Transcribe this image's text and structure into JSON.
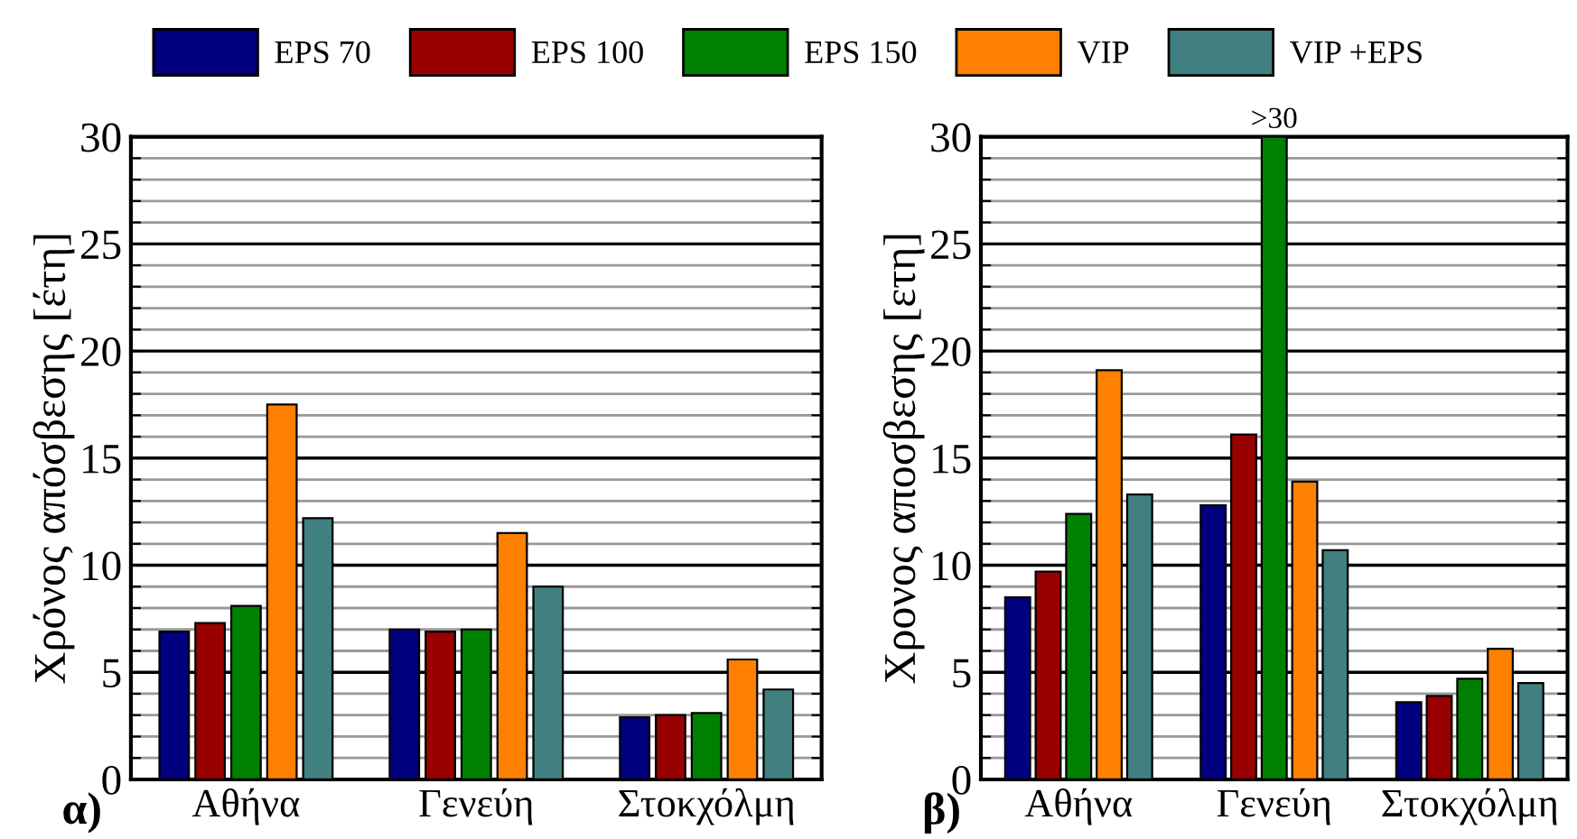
{
  "chart_data": [
    {
      "type": "bar",
      "categories": [
        "Αθήνα",
        "Γενεύη",
        "Στοκχόλμη"
      ],
      "ylabel": "Χρόνος απόσβεσης [έτη]",
      "annotations": [
        "α)"
      ],
      "legend": "top",
      "grid": "y",
      "ylim": [
        0,
        30
      ],
      "yticks": [
        0,
        {
          "value": 1,
          "label": null
        },
        {
          "value": 2,
          "label": null
        },
        {
          "value": 3,
          "label": null
        },
        {
          "value": 4,
          "label": null
        },
        5,
        {
          "value": 6,
          "label": null
        },
        {
          "value": 7,
          "label": null
        },
        {
          "value": 8,
          "label": null
        },
        {
          "value": 9,
          "label": null
        },
        10,
        {
          "value": 11,
          "label": null
        },
        {
          "value": 12,
          "label": null
        },
        {
          "value": 13,
          "label": null
        },
        {
          "value": 14,
          "label": null
        },
        15,
        {
          "value": 16,
          "label": null
        },
        {
          "value": 17,
          "label": null
        },
        {
          "value": 18,
          "label": null
        },
        {
          "value": 19,
          "label": null
        },
        20,
        {
          "value": 21,
          "label": null
        },
        {
          "value": 22,
          "label": null
        },
        {
          "value": 23,
          "label": null
        },
        {
          "value": 24,
          "label": null
        },
        25,
        {
          "value": 26,
          "label": null
        },
        {
          "value": 27,
          "label": null
        },
        {
          "value": 28,
          "label": null
        },
        {
          "value": 29,
          "label": null
        },
        30
      ],
      "series": [
        {
          "name": "EPS 70",
          "color": "#000080",
          "values": [
            6.9,
            7.0,
            2.9
          ]
        },
        {
          "name": "EPS 100",
          "color": "#990000",
          "values": [
            7.3,
            6.9,
            3.0
          ]
        },
        {
          "name": "EPS 150",
          "color": "#008000",
          "values": [
            8.1,
            7.0,
            3.1
          ]
        },
        {
          "name": "VIP",
          "color": "#ff8000",
          "values": [
            17.5,
            11.5,
            5.6
          ]
        },
        {
          "name": "VIP +EPS",
          "color": "#408080",
          "values": [
            12.2,
            9.0,
            4.2
          ]
        }
      ]
    },
    {
      "type": "bar",
      "categories": [
        "Αθήνα",
        "Γενεύη",
        "Στοκχόλμη"
      ],
      "ylabel": "Χρονος αποσβεσης [ετη]",
      "annotations": [
        "β)"
      ],
      "grid": "y",
      "ylim": [
        0,
        30
      ],
      "yticks": [
        0,
        {
          "value": 1,
          "label": null
        },
        {
          "value": 2,
          "label": null
        },
        {
          "value": 3,
          "label": null
        },
        {
          "value": 4,
          "label": null
        },
        5,
        {
          "value": 6,
          "label": null
        },
        {
          "value": 7,
          "label": null
        },
        {
          "value": 8,
          "label": null
        },
        {
          "value": 9,
          "label": null
        },
        10,
        {
          "value": 11,
          "label": null
        },
        {
          "value": 12,
          "label": null
        },
        {
          "value": 13,
          "label": null
        },
        {
          "value": 14,
          "label": null
        },
        15,
        {
          "value": 16,
          "label": null
        },
        {
          "value": 17,
          "label": null
        },
        {
          "value": 18,
          "label": null
        },
        {
          "value": 19,
          "label": null
        },
        20,
        {
          "value": 21,
          "label": null
        },
        {
          "value": 22,
          "label": null
        },
        {
          "value": 23,
          "label": null
        },
        {
          "value": 24,
          "label": null
        },
        25,
        {
          "value": 26,
          "label": null
        },
        {
          "value": 27,
          "label": null
        },
        {
          "value": 28,
          "label": null
        },
        {
          "value": 29,
          "label": null
        },
        30
      ],
      "series": [
        {
          "color": "#000080",
          "values": [
            8.5,
            12.8,
            3.6
          ]
        },
        {
          "color": "#990000",
          "values": [
            9.7,
            16.1,
            3.9
          ]
        },
        {
          "color": "#008000",
          "values": [
            12.4,
            30,
            4.7
          ],
          "value_labels": [
            null,
            ">30",
            null
          ]
        },
        {
          "color": "#ff8000",
          "values": [
            19.1,
            13.9,
            6.1
          ]
        },
        {
          "color": "#408080",
          "values": [
            13.3,
            10.7,
            4.5
          ]
        }
      ]
    }
  ]
}
